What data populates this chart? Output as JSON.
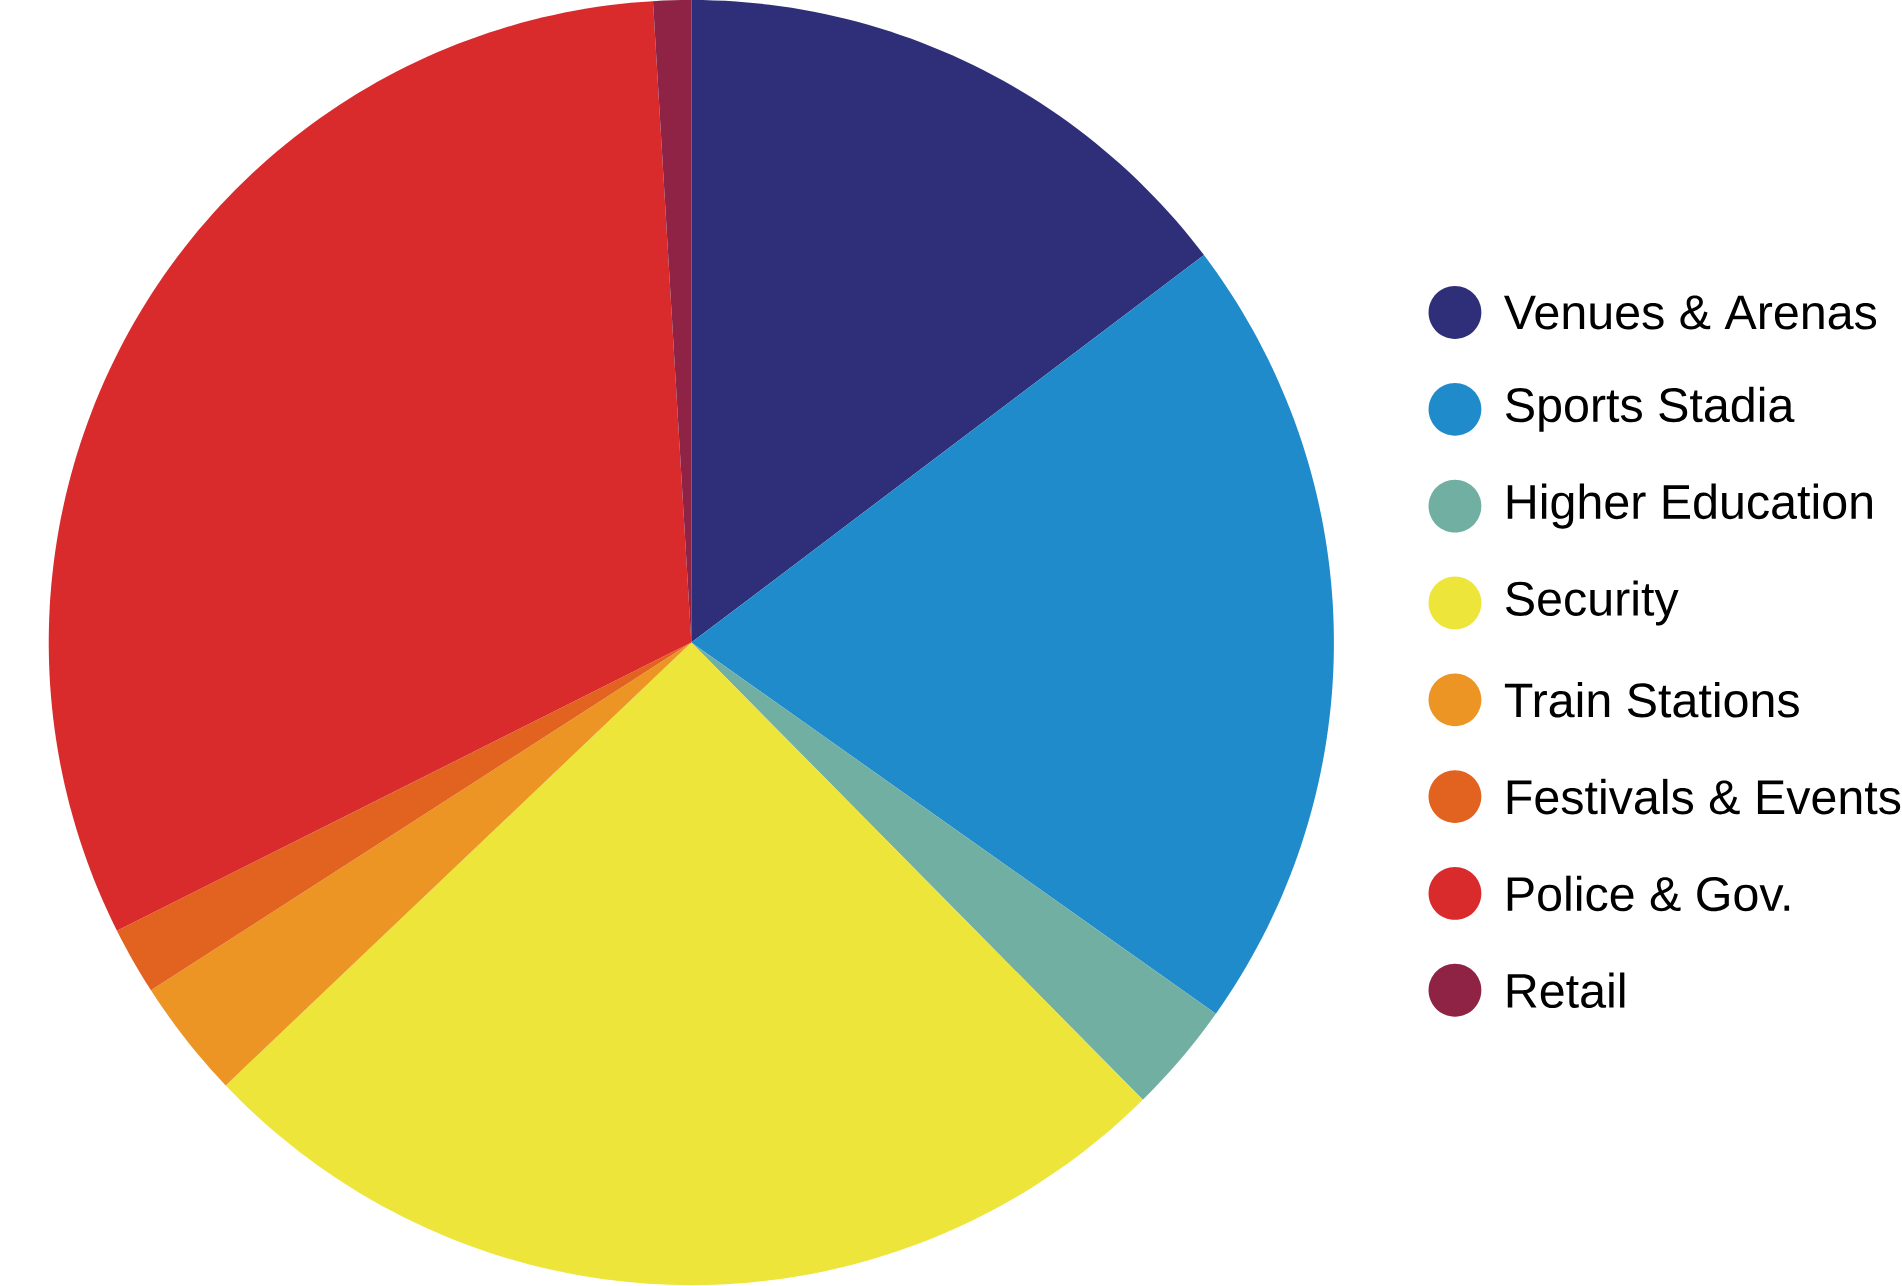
{
  "chart_data": {
    "type": "pie",
    "categories": [
      "Venues & Arenas",
      "Sports Stadia",
      "Higher Education",
      "Security",
      "Train Stations",
      "Festivals & Events",
      "Police & Gov.",
      "Retail"
    ],
    "values": [
      14.7,
      20.1,
      2.8,
      25.3,
      3.0,
      1.7,
      31.45,
      0.95
    ],
    "colors": [
      "#2e2f78",
      "#1f8bcb",
      "#72afa3",
      "#ede53a",
      "#ec9424",
      "#e2621f",
      "#d92b2c",
      "#8e2346"
    ],
    "legend": "right"
  }
}
